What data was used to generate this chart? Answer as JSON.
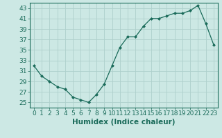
{
  "x": [
    0,
    1,
    2,
    3,
    4,
    5,
    6,
    7,
    8,
    9,
    10,
    11,
    12,
    13,
    14,
    15,
    16,
    17,
    18,
    19,
    20,
    21,
    22,
    23
  ],
  "y": [
    32,
    30,
    29,
    28,
    27.5,
    26,
    25.5,
    25,
    26.5,
    28.5,
    32,
    35.5,
    37.5,
    37.5,
    39.5,
    41,
    41,
    41.5,
    42,
    42,
    42.5,
    43.5,
    40,
    36
  ],
  "xlabel": "Humidex (Indice chaleur)",
  "xlim": [
    -0.5,
    23.5
  ],
  "ylim": [
    24.0,
    44.0
  ],
  "yticks": [
    25,
    27,
    29,
    31,
    33,
    35,
    37,
    39,
    41,
    43
  ],
  "xticks": [
    0,
    1,
    2,
    3,
    4,
    5,
    6,
    7,
    8,
    9,
    10,
    11,
    12,
    13,
    14,
    15,
    16,
    17,
    18,
    19,
    20,
    21,
    22,
    23
  ],
  "line_color": "#1a6b5a",
  "marker_color": "#1a6b5a",
  "bg_color": "#cce8e4",
  "grid_color": "#aed0cc",
  "axis_color": "#1a6b5a",
  "tick_label_color": "#1a6b5a",
  "xlabel_color": "#1a6b5a",
  "font_size": 6.5,
  "xlabel_fontsize": 7.5
}
